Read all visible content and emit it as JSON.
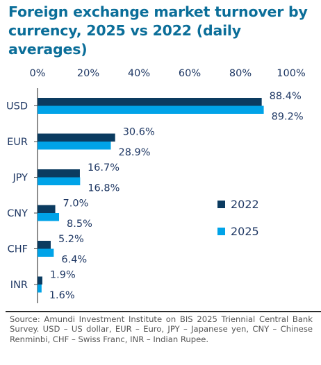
{
  "title": "Foreign exchange market turnover by currency, 2025 vs 2022 (daily averages)",
  "source": "Source: Amundi Investment Institute on BIS 2025 Triennial Central Bank Survey. USD – US dollar, EUR – Euro, JPY – Japanese yen, CNY – Chinese Renminbi,  CHF – Swiss Franc, INR – Indian Rupee.",
  "chart_data": {
    "type": "bar",
    "orientation": "horizontal",
    "categories": [
      "USD",
      "EUR",
      "JPY",
      "CNY",
      "CHF",
      "INR"
    ],
    "series": [
      {
        "name": "2022",
        "color": "#0b3b60",
        "values": [
          88.4,
          30.6,
          16.7,
          7.0,
          5.2,
          1.9
        ]
      },
      {
        "name": "2025",
        "color": "#00a3e8",
        "values": [
          89.2,
          28.9,
          16.8,
          8.5,
          6.4,
          1.6
        ]
      }
    ],
    "value_labels": [
      [
        "88.4%",
        "30.6%",
        "16.7%",
        "7.0%",
        "5.2%",
        "1.9%"
      ],
      [
        "89.2%",
        "28.9%",
        "16.8%",
        "8.5%",
        "6.4%",
        "1.6%"
      ]
    ],
    "x_ticks": [
      "0%",
      "20%",
      "40%",
      "60%",
      "80%",
      "100%"
    ],
    "xlim": [
      0,
      100
    ],
    "axis_position": "top",
    "grid": false,
    "legend": "right-middle",
    "colors": {
      "accent": "#0b6e99",
      "text": "#1f3864"
    }
  }
}
